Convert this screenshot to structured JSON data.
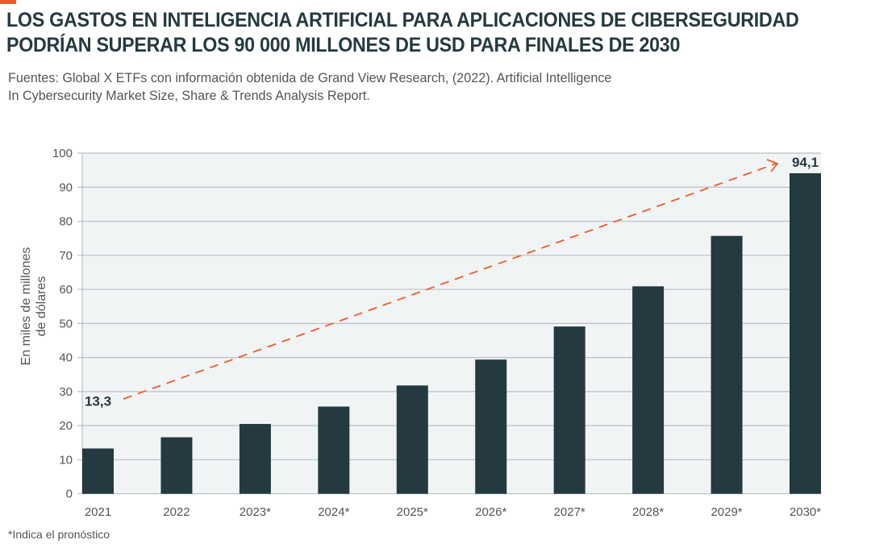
{
  "header": {
    "title_line1": "LOS GASTOS EN INTELIGENCIA ARTIFICIAL PARA APLICACIONES DE CIBERSEGURIDAD",
    "title_line2": "PODRÍAN SUPERAR LOS 90 000 MILLONES DE USD PARA FINALES DE 2030",
    "source_line1": "Fuentes: Global X ETFs con información obtenida de Grand View Research, (2022). Artificial Intelligence",
    "source_line2": "In Cybersecurity Market Size, Share & Trends Analysis Report.",
    "accent_color": "#f05a28"
  },
  "footnote": "*Indica el pronóstico",
  "chart_data": {
    "type": "bar",
    "categories": [
      "2021",
      "2022",
      "2023*",
      "2024*",
      "2025*",
      "2026*",
      "2027*",
      "2028*",
      "2029*",
      "2030*"
    ],
    "values": [
      13.3,
      16.6,
      20.5,
      25.6,
      31.8,
      39.4,
      49.1,
      60.9,
      75.7,
      94.1
    ],
    "data_labels": {
      "0": "13,3",
      "9": "94,1"
    },
    "ylabel_line1": "En miles de millones",
    "ylabel_line2": "de dólares",
    "ylim": [
      0,
      100
    ],
    "yticks": [
      "0",
      "10",
      "20",
      "30",
      "40",
      "50",
      "60",
      "70",
      "80",
      "90",
      "100"
    ],
    "grid": true,
    "trend_arrow": "dashed",
    "bar_color": "#243940",
    "arrow_color": "#f05a28",
    "plot_background": "#f1f4f5"
  }
}
